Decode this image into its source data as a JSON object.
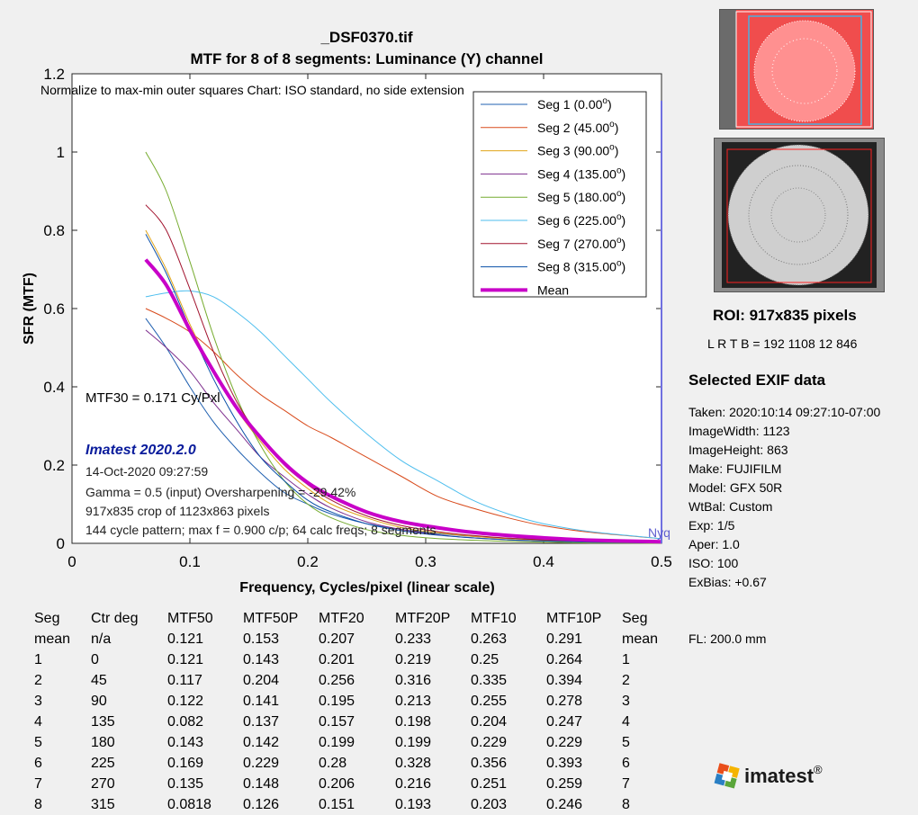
{
  "header": {
    "filename": "_DSF0370.tif",
    "subtitle": "MTF for 8 of 8 segments:  Luminance (Y) channel"
  },
  "plot_annotations": {
    "normalize_note": "Normalize to max-min outer squares    Chart: ISO standard, no side extension",
    "mtf30": "MTF30 = 0.171 Cy/Pxl",
    "software": "Imatest 2020.2.0",
    "date": "14-Oct-2020 09:27:59",
    "gamma": "Gamma = 0.5 (input)  Oversharpening = -29.42%",
    "crop": "917x835 crop of 1123x863 pixels",
    "pattern": "144 cycle pattern; max f = 0.900 c/p;  64 calc freqs;  8 segments",
    "nyq": "Nyq"
  },
  "chart_data": {
    "type": "line",
    "title": "MTF for 8 of 8 segments:  Luminance (Y) channel",
    "xlabel": "Frequency, Cycles/pixel (linear scale)",
    "ylabel": "SFR (MTF)",
    "xlim": [
      0,
      0.5
    ],
    "ylim": [
      0,
      1.2
    ],
    "xticks": [
      "0",
      "0.1",
      "0.2",
      "0.3",
      "0.4",
      "0.5"
    ],
    "yticks": [
      "0",
      "0.2",
      "0.4",
      "0.6",
      "0.8",
      "1",
      "1.2"
    ],
    "grid": false,
    "legend_position": "top-right",
    "nyquist_x": 0.5,
    "x": [
      0.0625,
      0.08,
      0.1,
      0.12,
      0.14,
      0.16,
      0.18,
      0.2,
      0.22,
      0.25,
      0.28,
      0.31,
      0.34,
      0.37,
      0.4,
      0.44,
      0.5
    ],
    "series": [
      {
        "name": "Seg 1 (0.00",
        "sup": "o",
        "close": ")",
        "color": "#2060b0",
        "width": 1,
        "values": [
          0.575,
          0.5,
          0.4,
          0.31,
          0.24,
          0.18,
          0.13,
          0.1,
          0.075,
          0.05,
          0.035,
          0.025,
          0.018,
          0.013,
          0.01,
          0.006,
          0.003
        ]
      },
      {
        "name": "Seg 2 (45.00",
        "sup": "o",
        "close": ")",
        "color": "#d84a1b",
        "width": 1,
        "values": [
          0.6,
          0.575,
          0.54,
          0.49,
          0.43,
          0.38,
          0.34,
          0.3,
          0.27,
          0.22,
          0.17,
          0.12,
          0.09,
          0.065,
          0.045,
          0.028,
          0.012
        ]
      },
      {
        "name": "Seg 3 (90.00",
        "sup": "o",
        "close": ")",
        "color": "#e0a418",
        "width": 1,
        "values": [
          0.8,
          0.7,
          0.56,
          0.44,
          0.34,
          0.26,
          0.19,
          0.14,
          0.1,
          0.065,
          0.04,
          0.027,
          0.018,
          0.012,
          0.008,
          0.004,
          0.002
        ]
      },
      {
        "name": "Seg 4 (135.00",
        "sup": "o",
        "close": ")",
        "color": "#7e2f8e",
        "width": 1,
        "values": [
          0.545,
          0.5,
          0.44,
          0.36,
          0.29,
          0.22,
          0.17,
          0.125,
          0.09,
          0.055,
          0.035,
          0.022,
          0.014,
          0.009,
          0.006,
          0.003,
          0.001
        ]
      },
      {
        "name": "Seg 5 (180.00",
        "sup": "o",
        "close": ")",
        "color": "#77ac30",
        "width": 1,
        "values": [
          1.0,
          0.9,
          0.72,
          0.53,
          0.37,
          0.25,
          0.16,
          0.1,
          0.065,
          0.035,
          0.02,
          0.012,
          0.008,
          0.005,
          0.003,
          0.001,
          0.0
        ]
      },
      {
        "name": "Seg 6 (225.00",
        "sup": "o",
        "close": ")",
        "color": "#4dbeee",
        "width": 1,
        "values": [
          0.63,
          0.64,
          0.645,
          0.63,
          0.59,
          0.54,
          0.48,
          0.42,
          0.36,
          0.28,
          0.21,
          0.16,
          0.11,
          0.075,
          0.05,
          0.03,
          0.012
        ]
      },
      {
        "name": "Seg 7 (270.00",
        "sup": "o",
        "close": ")",
        "color": "#a2142f",
        "width": 1,
        "values": [
          0.865,
          0.8,
          0.65,
          0.49,
          0.36,
          0.27,
          0.2,
          0.15,
          0.11,
          0.07,
          0.045,
          0.03,
          0.02,
          0.013,
          0.009,
          0.005,
          0.002
        ]
      },
      {
        "name": "Seg 8 (315.00",
        "sup": "o",
        "close": ")",
        "color": "#0a4fa8",
        "width": 1,
        "values": [
          0.79,
          0.69,
          0.55,
          0.42,
          0.31,
          0.22,
          0.16,
          0.11,
          0.08,
          0.05,
          0.032,
          0.021,
          0.014,
          0.009,
          0.006,
          0.003,
          0.001
        ]
      },
      {
        "name": "Mean",
        "sup": "",
        "close": "",
        "color": "#c800c8",
        "width": 4,
        "values": [
          0.725,
          0.66,
          0.545,
          0.44,
          0.345,
          0.27,
          0.205,
          0.155,
          0.12,
          0.08,
          0.055,
          0.04,
          0.028,
          0.02,
          0.014,
          0.008,
          0.004
        ]
      }
    ]
  },
  "sidebar": {
    "roi_title": "ROI:  917x835 pixels",
    "roi_coords": "L R  T B = 192 1108  12 846",
    "exif_title": "Selected EXIF data",
    "exif": [
      "Taken: 2020:10:14 09:27:10-07:00",
      "ImageWidth:  1123",
      "ImageHeight:  863",
      "Make:  FUJIFILM",
      "Model:  GFX 50R",
      "WtBal:  Custom",
      "Exp:   1/5",
      "Aper:  1.0",
      "ISO:   100",
      "ExBias:  +0.67"
    ],
    "fl": "FL:   200.0 mm",
    "colors": {
      "roi_highlight": "#ff3b3b",
      "roi_outline": "#ff2020",
      "roi_inner_box": "#4ab0e0"
    }
  },
  "table": {
    "headers": [
      "Seg",
      "Ctr deg",
      "MTF50",
      "MTF50P",
      "MTF20",
      "MTF20P",
      "MTF10",
      "MTF10P",
      "Seg"
    ],
    "rows": [
      [
        "mean",
        "n/a",
        "0.121",
        "0.153",
        "0.207",
        "0.233",
        "0.263",
        "0.291",
        "mean"
      ],
      [
        "1",
        "0",
        "0.121",
        "0.143",
        "0.201",
        "0.219",
        "0.25",
        "0.264",
        "1"
      ],
      [
        "2",
        "45",
        "0.117",
        "0.204",
        "0.256",
        "0.316",
        "0.335",
        "0.394",
        "2"
      ],
      [
        "3",
        "90",
        "0.122",
        "0.141",
        "0.195",
        "0.213",
        "0.255",
        "0.278",
        "3"
      ],
      [
        "4",
        "135",
        "0.082",
        "0.137",
        "0.157",
        "0.198",
        "0.204",
        "0.247",
        "4"
      ],
      [
        "5",
        "180",
        "0.143",
        "0.142",
        "0.199",
        "0.199",
        "0.229",
        "0.229",
        "5"
      ],
      [
        "6",
        "225",
        "0.169",
        "0.229",
        "0.28",
        "0.328",
        "0.356",
        "0.393",
        "6"
      ],
      [
        "7",
        "270",
        "0.135",
        "0.148",
        "0.206",
        "0.216",
        "0.251",
        "0.259",
        "7"
      ],
      [
        "8",
        "315",
        "0.0818",
        "0.126",
        "0.151",
        "0.193",
        "0.203",
        "0.246",
        "8"
      ]
    ]
  },
  "logo": {
    "text": "imatest",
    "mark": "®"
  }
}
